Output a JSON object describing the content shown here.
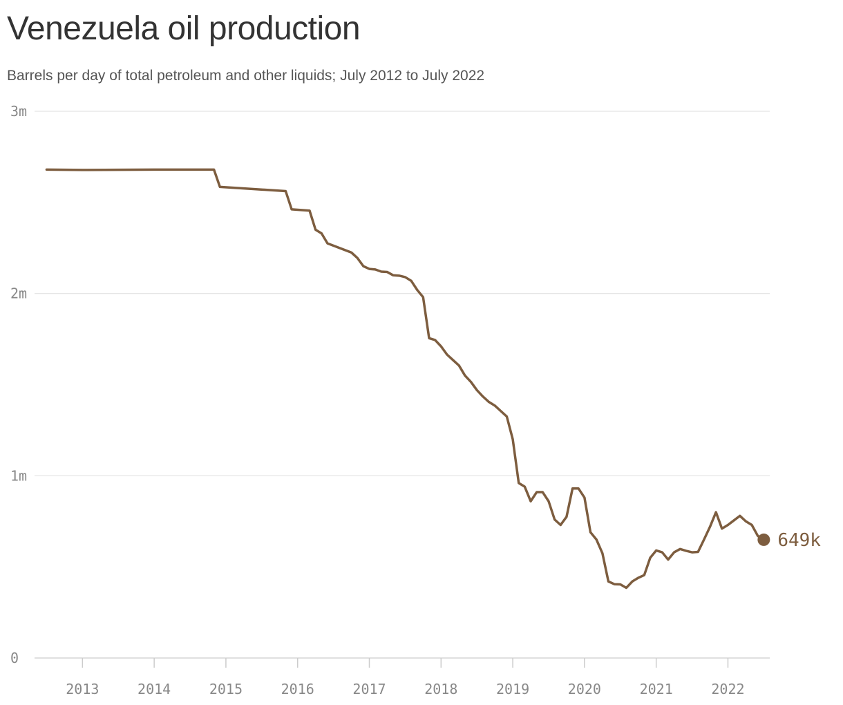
{
  "chart_data": {
    "type": "line",
    "title": "Venezuela oil production",
    "subtitle": "Barrels per day of total petroleum and other liquids; July 2012 to July 2022",
    "xlabel": "",
    "ylabel": "",
    "xlim": [
      "2012-06",
      "2022-08"
    ],
    "ylim": [
      0,
      3000000
    ],
    "x_ticks": [
      {
        "value": "2013-01",
        "label": "2013"
      },
      {
        "value": "2014-01",
        "label": "2014"
      },
      {
        "value": "2015-01",
        "label": "2015"
      },
      {
        "value": "2016-01",
        "label": "2016"
      },
      {
        "value": "2017-01",
        "label": "2017"
      },
      {
        "value": "2018-01",
        "label": "2018"
      },
      {
        "value": "2019-01",
        "label": "2019"
      },
      {
        "value": "2020-01",
        "label": "2020"
      },
      {
        "value": "2021-01",
        "label": "2021"
      },
      {
        "value": "2022-01",
        "label": "2022"
      }
    ],
    "y_ticks": [
      {
        "value": 0,
        "label": "0"
      },
      {
        "value": 1000000,
        "label": "1m"
      },
      {
        "value": 2000000,
        "label": "2m"
      },
      {
        "value": 3000000,
        "label": "3m"
      }
    ],
    "grid": true,
    "line_color": "#7d5d3f",
    "end_label": "649k",
    "series": [
      {
        "points": [
          [
            "2012-07",
            2680000
          ],
          [
            "2013-01",
            2678000
          ],
          [
            "2014-01",
            2680000
          ],
          [
            "2014-11",
            2680000
          ],
          [
            "2014-12",
            2585000
          ],
          [
            "2015-11",
            2562000
          ],
          [
            "2015-12",
            2462000
          ],
          [
            "2016-03",
            2455000
          ],
          [
            "2016-04",
            2350000
          ],
          [
            "2016-05",
            2330000
          ],
          [
            "2016-06",
            2275000
          ],
          [
            "2016-10",
            2225000
          ],
          [
            "2016-11",
            2195000
          ],
          [
            "2016-12",
            2150000
          ],
          [
            "2017-01",
            2135000
          ],
          [
            "2017-02",
            2132000
          ],
          [
            "2017-03",
            2120000
          ],
          [
            "2017-04",
            2118000
          ],
          [
            "2017-05",
            2100000
          ],
          [
            "2017-06",
            2098000
          ],
          [
            "2017-07",
            2090000
          ],
          [
            "2017-08",
            2070000
          ],
          [
            "2017-09",
            2020000
          ],
          [
            "2017-10",
            1980000
          ],
          [
            "2017-11",
            1755000
          ],
          [
            "2017-12",
            1745000
          ],
          [
            "2018-01",
            1710000
          ],
          [
            "2018-02",
            1665000
          ],
          [
            "2018-03",
            1635000
          ],
          [
            "2018-04",
            1605000
          ],
          [
            "2018-05",
            1550000
          ],
          [
            "2018-06",
            1515000
          ],
          [
            "2018-07",
            1470000
          ],
          [
            "2018-08",
            1435000
          ],
          [
            "2018-09",
            1405000
          ],
          [
            "2018-10",
            1385000
          ],
          [
            "2018-11",
            1355000
          ],
          [
            "2018-12",
            1325000
          ],
          [
            "2019-01",
            1200000
          ],
          [
            "2019-02",
            960000
          ],
          [
            "2019-03",
            940000
          ],
          [
            "2019-04",
            860000
          ],
          [
            "2019-05",
            910000
          ],
          [
            "2019-06",
            910000
          ],
          [
            "2019-07",
            860000
          ],
          [
            "2019-08",
            760000
          ],
          [
            "2019-09",
            730000
          ],
          [
            "2019-10",
            775000
          ],
          [
            "2019-11",
            930000
          ],
          [
            "2019-12",
            930000
          ],
          [
            "2020-01",
            880000
          ],
          [
            "2020-02",
            690000
          ],
          [
            "2020-03",
            650000
          ],
          [
            "2020-04",
            575000
          ],
          [
            "2020-05",
            420000
          ],
          [
            "2020-06",
            405000
          ],
          [
            "2020-07",
            404000
          ],
          [
            "2020-08",
            385000
          ],
          [
            "2020-09",
            420000
          ],
          [
            "2020-10",
            440000
          ],
          [
            "2020-11",
            455000
          ],
          [
            "2020-12",
            550000
          ],
          [
            "2021-01",
            590000
          ],
          [
            "2021-02",
            580000
          ],
          [
            "2021-03",
            540000
          ],
          [
            "2021-04",
            580000
          ],
          [
            "2021-05",
            598000
          ],
          [
            "2021-06",
            588000
          ],
          [
            "2021-07",
            580000
          ],
          [
            "2021-08",
            582000
          ],
          [
            "2021-09",
            650000
          ],
          [
            "2021-10",
            720000
          ],
          [
            "2021-11",
            800000
          ],
          [
            "2021-12",
            710000
          ],
          [
            "2022-01",
            730000
          ],
          [
            "2022-02",
            755000
          ],
          [
            "2022-03",
            780000
          ],
          [
            "2022-04",
            750000
          ],
          [
            "2022-05",
            730000
          ],
          [
            "2022-06",
            670000
          ],
          [
            "2022-07",
            649000
          ]
        ]
      }
    ]
  }
}
